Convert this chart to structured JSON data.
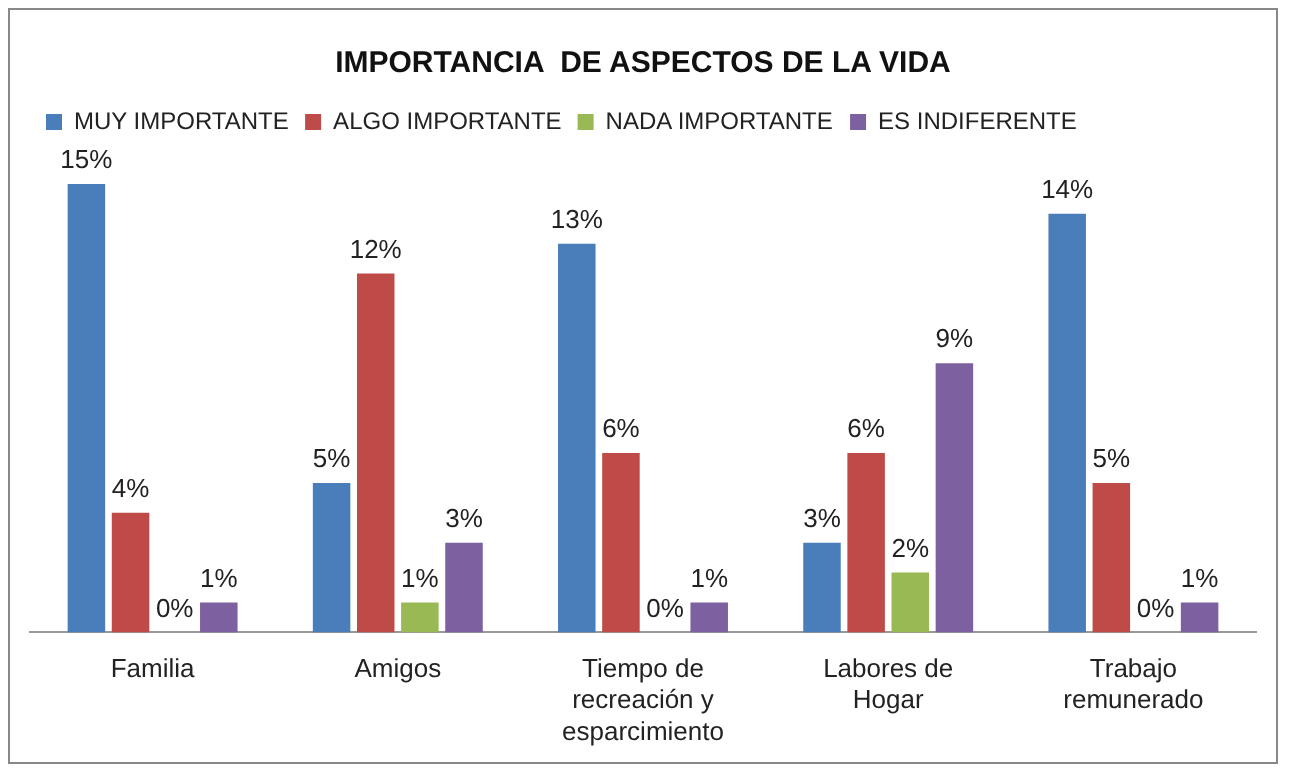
{
  "chart_data": {
    "type": "bar",
    "title": "IMPORTANCIA  DE ASPECTOS DE LA VIDA",
    "categories": [
      "Familia",
      "Amigos",
      "Tiempo de recreación y esparcimiento",
      "Labores de Hogar",
      "Trabajo remunerado"
    ],
    "series": [
      {
        "name": "MUY IMPORTANTE",
        "color": "#4a7ebb",
        "values": [
          15,
          5,
          13,
          3,
          14
        ],
        "value_labels": [
          "15%",
          "5%",
          "13%",
          "3%",
          "14%"
        ]
      },
      {
        "name": "ALGO IMPORTANTE",
        "color": "#be4b48",
        "values": [
          4,
          12,
          6,
          6,
          5
        ],
        "value_labels": [
          "4%",
          "12%",
          "6%",
          "6%",
          "5%"
        ]
      },
      {
        "name": "NADA IMPORTANTE",
        "color": "#98b954",
        "values": [
          0,
          1,
          0,
          2,
          0
        ],
        "value_labels": [
          "0%",
          "1%",
          "0%",
          "2%",
          "0%"
        ]
      },
      {
        "name": "ES INDIFERENTE",
        "color": "#7d60a0",
        "values": [
          1,
          3,
          1,
          9,
          1
        ],
        "value_labels": [
          "1%",
          "3%",
          "1%",
          "9%",
          "1%"
        ]
      }
    ],
    "legend": "top",
    "grid": false
  }
}
